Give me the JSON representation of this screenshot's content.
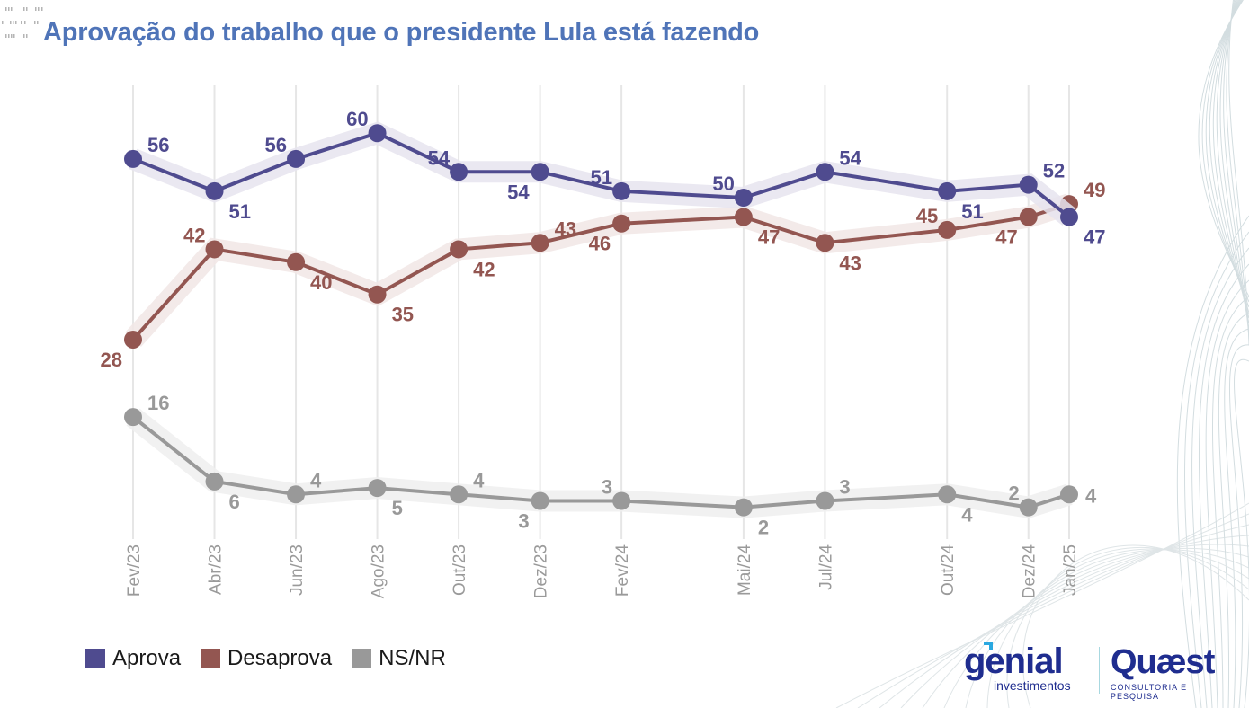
{
  "header": {
    "title": "Aprovação do trabalho que o presidente Lula está fazendo"
  },
  "legend": {
    "items": [
      {
        "label": "Aprova",
        "color": "#4f4b8f"
      },
      {
        "label": "Desaprova",
        "color": "#935651"
      },
      {
        "label": "NS/NR",
        "color": "#999999"
      }
    ]
  },
  "logos": {
    "genial_main": "genial",
    "genial_sub": "investimentos",
    "quaest_main": "Quæst",
    "quaest_sub": "CONSULTORIA E PESQUISA"
  },
  "colors": {
    "title": "#4f74b8",
    "aprova": "#4f4b8f",
    "desaprova": "#935651",
    "nsnr": "#999999",
    "gridline": "#e6e6e6",
    "tick_label": "#9a9a9a"
  },
  "chart_data": {
    "type": "line",
    "title": "Aprovação do trabalho que o presidente Lula está fazendo",
    "xlabel": "",
    "ylabel": "",
    "grid": "vertical",
    "legend_position": "bottom-left",
    "x": [
      "Fev/23",
      "Abr/23",
      "Jun/23",
      "Ago/23",
      "Out/23",
      "Dez/23",
      "Fev/24",
      "Mai/24",
      "Jul/24",
      "Out/24",
      "Dez/24",
      "Jan/25"
    ],
    "x_month_index": [
      0,
      2,
      4,
      6,
      8,
      10,
      12,
      15,
      17,
      20,
      22,
      23
    ],
    "ylim": [
      0,
      65
    ],
    "series": [
      {
        "name": "Aprova",
        "values": [
          56,
          51,
          56,
          60,
          54,
          54,
          51,
          50,
          54,
          51,
          52,
          47
        ],
        "label_pos": [
          "ar",
          "br",
          "al",
          "al",
          "al",
          "bl",
          "al",
          "al",
          "ar",
          "br",
          "ar",
          "br"
        ]
      },
      {
        "name": "Desaprova",
        "values": [
          28,
          42,
          40,
          35,
          42,
          43,
          46,
          47,
          43,
          45,
          47,
          49
        ],
        "label_pos": [
          "bl",
          "al",
          "br",
          "br",
          "br",
          "ar",
          "bl",
          "br",
          "br",
          "al",
          "bl",
          "ar"
        ]
      },
      {
        "name": "NS/NR",
        "values": [
          16,
          6,
          4,
          5,
          4,
          3,
          3,
          2,
          3,
          4,
          2,
          4
        ],
        "label_pos": [
          "ar",
          "br",
          "ar",
          "br",
          "ar",
          "bl",
          "al",
          "br",
          "ar",
          "br",
          "al",
          "r"
        ]
      }
    ]
  }
}
